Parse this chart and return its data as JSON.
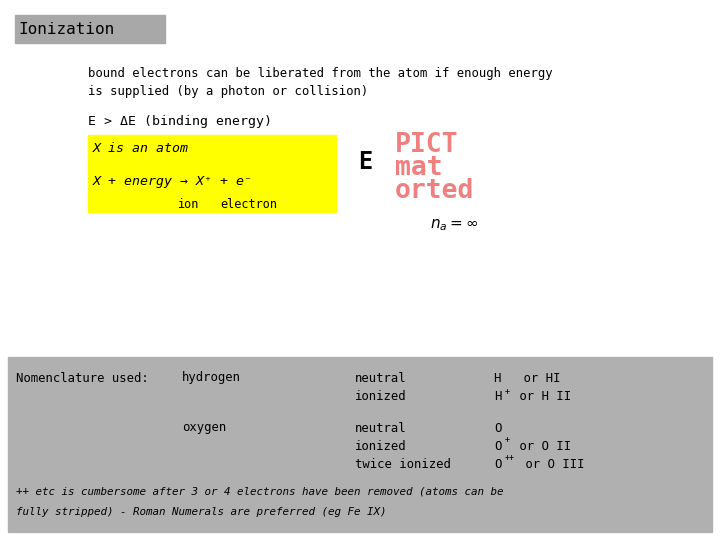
{
  "title": "Ionization",
  "title_bg": "#a8a8a8",
  "bg_color": "#ffffff",
  "body_text1": "bound electrons can be liberated from the atom if enough energy",
  "body_text2": "is supplied (by a photon or collision)",
  "binding_energy_text": "E > ΔE (binding energy)",
  "yellow_line1": "X is an atom",
  "yellow_line2": "X + energy → X⁺ + e⁻",
  "yellow_line3_left": "ion",
  "yellow_line3_right": "electron",
  "yellow_bg": "#ffff00",
  "E_label": "E",
  "pict_color": "#f08080",
  "na_inf": "$n_a = \\infty$",
  "bottom_bg": "#b0b0b0",
  "nom_label": "Nomenclature used:",
  "hydrogen": "hydrogen",
  "oxygen": "oxygen",
  "footnote1": "++ etc is cumbersome after 3 or 4 electrons have been removed (atoms can be",
  "footnote2": "fully stripped) - Roman Numerals are preferred (eg Fe IX)",
  "fig_w": 7.2,
  "fig_h": 5.4,
  "dpi": 100
}
